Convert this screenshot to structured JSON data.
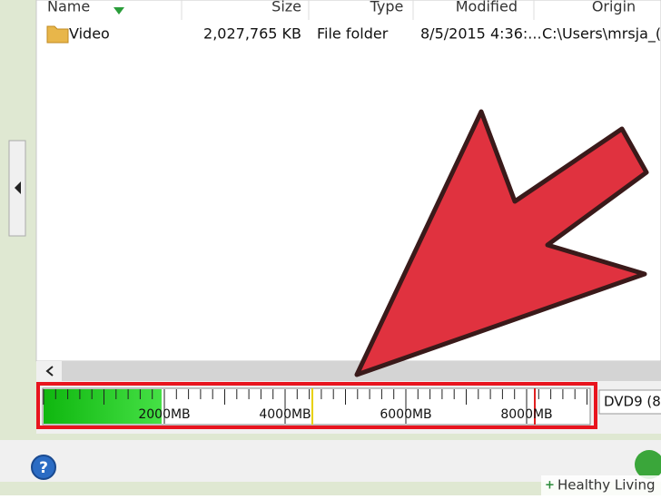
{
  "headers": [
    "Name",
    "Size",
    "Type",
    "Modified",
    "Origin"
  ],
  "row": {
    "name": "Video",
    "size": "2,027,765 KB",
    "type": "File folder",
    "modified": "8/5/2015 4:36:...",
    "origin": "C:\\Users\\mrsja_("
  },
  "scale_labels": [
    "2000MB",
    "4000MB",
    "6000MB",
    "8000MB"
  ],
  "disc_type": "DVD9 (8",
  "watermark": "Healthy Living"
}
